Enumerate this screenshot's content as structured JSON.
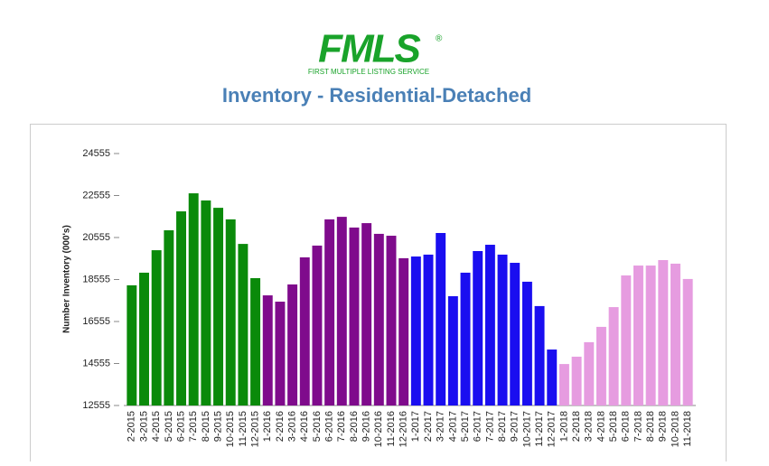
{
  "logo": {
    "mark": "FMLS",
    "registered": "®",
    "tagline": "FIRST MULTIPLE LISTING SERVICE"
  },
  "chart_data": {
    "type": "bar",
    "title": "Inventory - Residential-Detached",
    "y_label": "Number Inventory (000's)",
    "categories": [
      "2-2015",
      "3-2015",
      "4-2015",
      "5-2015",
      "6-2015",
      "7-2015",
      "8-2015",
      "9-2015",
      "10-2015",
      "11-2015",
      "12-2015",
      "1-2016",
      "2-2016",
      "3-2016",
      "4-2016",
      "5-2016",
      "6-2016",
      "7-2016",
      "8-2016",
      "9-2016",
      "10-2016",
      "11-2016",
      "12-2016",
      "1-2017",
      "2-2017",
      "3-2017",
      "4-2017",
      "5-2017",
      "6-2017",
      "7-2017",
      "8-2017",
      "9-2017",
      "10-2017",
      "11-2017",
      "12-2017",
      "1-2018",
      "2-2018",
      "3-2018",
      "4-2018",
      "5-2018",
      "6-2018",
      "7-2018",
      "8-2018",
      "9-2018",
      "10-2018",
      "11-2018"
    ],
    "values": [
      18280,
      18880,
      19950,
      20900,
      21800,
      22660,
      22320,
      21970,
      21420,
      20250,
      18620,
      17800,
      17500,
      18320,
      19610,
      20170,
      21420,
      21540,
      21030,
      21240,
      20730,
      20640,
      19570,
      19650,
      19740,
      20770,
      17760,
      18880,
      19910,
      20210,
      19740,
      19350,
      18450,
      17290,
      15220,
      14530,
      14880,
      15570,
      16300,
      17240,
      18750,
      19220,
      19220,
      19480,
      19310,
      18580
    ],
    "colors": [
      "#0a8a0a",
      "#0a8a0a",
      "#0a8a0a",
      "#0a8a0a",
      "#0a8a0a",
      "#0a8a0a",
      "#0a8a0a",
      "#0a8a0a",
      "#0a8a0a",
      "#0a8a0a",
      "#0a8a0a",
      "#7f0b8c",
      "#7f0b8c",
      "#7f0b8c",
      "#7f0b8c",
      "#7f0b8c",
      "#7f0b8c",
      "#7f0b8c",
      "#7f0b8c",
      "#7f0b8c",
      "#7f0b8c",
      "#7f0b8c",
      "#7f0b8c",
      "#1a0ef0",
      "#1a0ef0",
      "#1a0ef0",
      "#1a0ef0",
      "#1a0ef0",
      "#1a0ef0",
      "#1a0ef0",
      "#1a0ef0",
      "#1a0ef0",
      "#1a0ef0",
      "#1a0ef0",
      "#1a0ef0",
      "#e69ce0",
      "#e69ce0",
      "#e69ce0",
      "#e69ce0",
      "#e69ce0",
      "#e69ce0",
      "#e69ce0",
      "#e69ce0",
      "#e69ce0",
      "#e69ce0",
      "#e69ce0"
    ],
    "ylim": [
      12555,
      24555
    ],
    "yticks": [
      12555,
      14555,
      16555,
      18555,
      20555,
      22555,
      24555
    ]
  }
}
